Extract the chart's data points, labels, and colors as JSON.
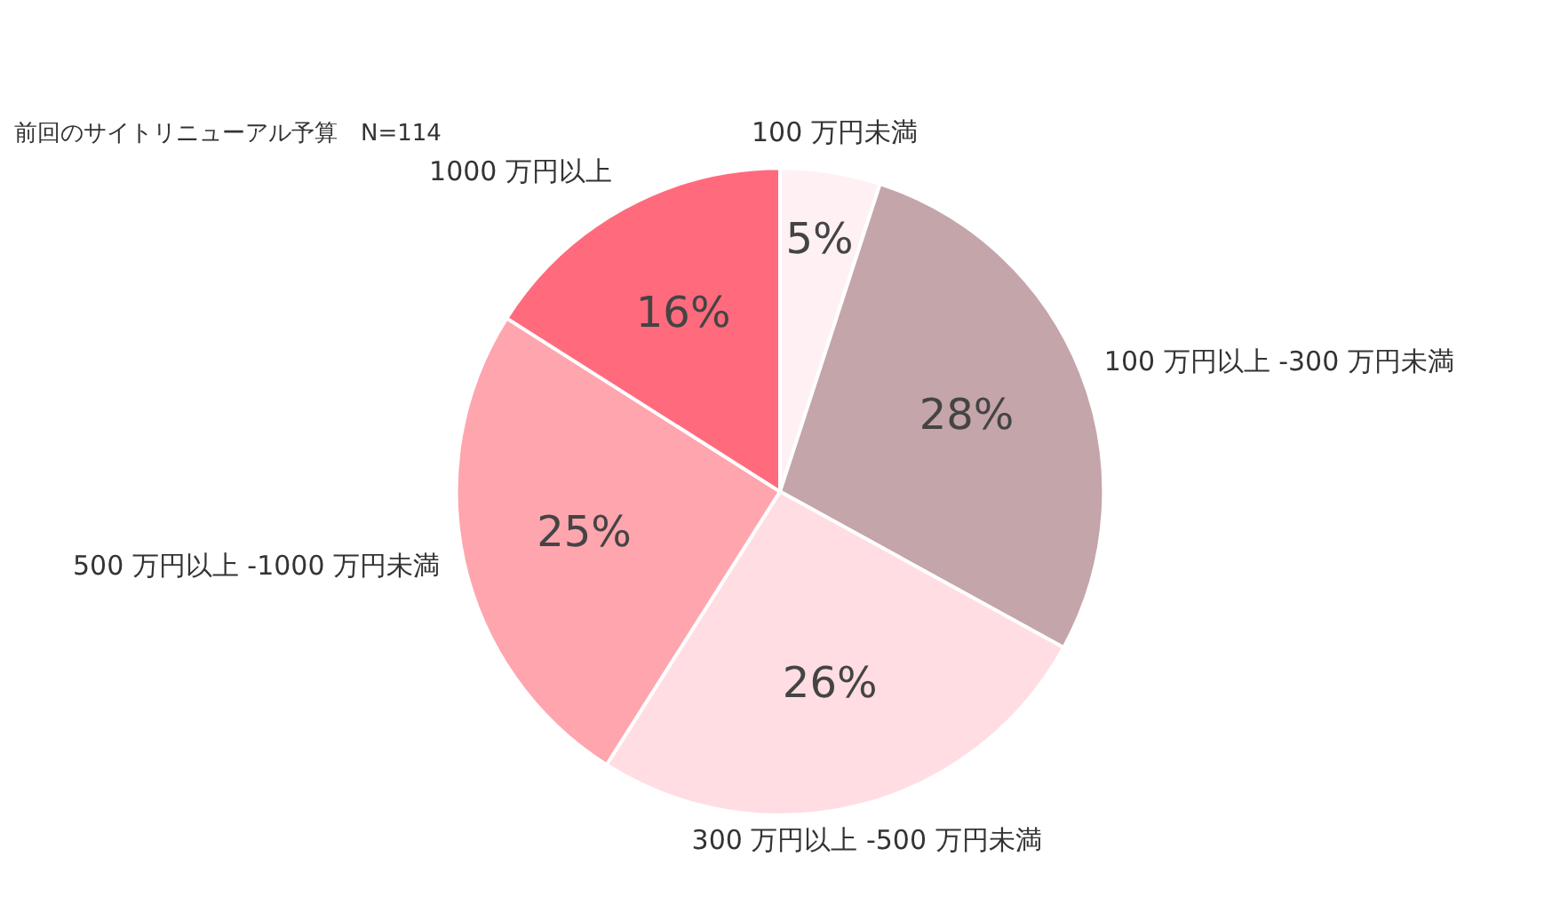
{
  "chart_data": {
    "type": "pie",
    "title": "前回のサイトリニューアル予算　N=114",
    "categories": [
      "100 万円未満",
      "100 万円以上 -300 万円未満",
      "300 万円以上 -500 万円未満",
      "500 万円以上 -1000 万円未満",
      "1000 万円以上"
    ],
    "values": [
      5,
      28,
      26,
      25,
      16
    ],
    "value_labels": [
      "5%",
      "28%",
      "26%",
      "25%",
      "16%"
    ],
    "colors": [
      "#fff0f3",
      "#c4a5aa",
      "#ffdde2",
      "#ffa5ae",
      "#ff6b7d"
    ],
    "legend": false
  }
}
